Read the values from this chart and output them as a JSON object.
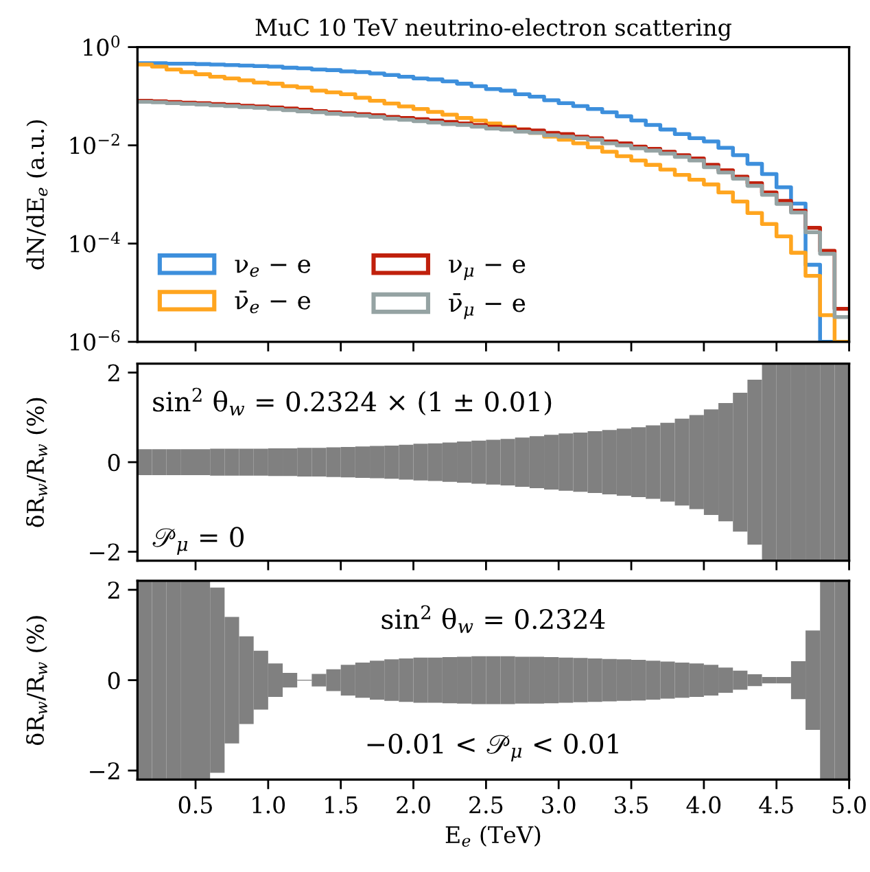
{
  "chart_data": [
    {
      "type": "histogram",
      "title": "MuC 10 TeV neutrino-electron scattering",
      "ylabel": "dN/dE$_{e}$ (a.u.)",
      "bins": [
        0.1,
        0.2,
        0.3,
        0.4,
        0.5,
        0.6,
        0.7,
        0.8,
        0.9,
        1.0,
        1.1,
        1.2,
        1.3,
        1.4,
        1.5,
        1.6,
        1.7,
        1.8,
        1.9,
        2.0,
        2.1,
        2.2,
        2.3,
        2.4,
        2.5,
        2.6,
        2.7,
        2.8,
        2.9,
        3.0,
        3.1,
        3.2,
        3.3,
        3.4,
        3.5,
        3.6,
        3.7,
        3.8,
        3.9,
        4.0,
        4.1,
        4.2,
        4.3,
        4.4,
        4.5,
        4.6,
        4.7,
        4.8,
        4.9,
        5.0
      ],
      "series": [
        {
          "name": "ν$_{e}$ − e",
          "color": "#3d8fdc",
          "values": [
            0.47,
            0.47,
            0.46,
            0.46,
            0.45,
            0.44,
            0.43,
            0.42,
            0.41,
            0.4,
            0.38,
            0.37,
            0.35,
            0.34,
            0.32,
            0.31,
            0.29,
            0.27,
            0.25,
            0.23,
            0.22,
            0.2,
            0.18,
            0.16,
            0.14,
            0.13,
            0.11,
            0.098,
            0.083,
            0.072,
            0.063,
            0.055,
            0.047,
            0.039,
            0.032,
            0.026,
            0.021,
            0.017,
            0.014,
            0.012,
            0.0089,
            0.0063,
            0.0042,
            0.0026,
            0.0014,
            0.00065,
            3.7e-05,
            null,
            null
          ]
        },
        {
          "name": "ν̄$_{e}$ − e",
          "color": "#ffa51f",
          "values": [
            0.44,
            0.4,
            0.35,
            0.31,
            0.28,
            0.25,
            0.23,
            0.21,
            0.19,
            0.18,
            0.16,
            0.15,
            0.13,
            0.12,
            0.11,
            0.093,
            0.081,
            0.071,
            0.062,
            0.055,
            0.048,
            0.042,
            0.036,
            0.032,
            0.028,
            0.024,
            0.021,
            0.018,
            0.015,
            0.013,
            0.011,
            0.0091,
            0.0074,
            0.006,
            0.0049,
            0.004,
            0.0032,
            0.0025,
            0.002,
            0.0016,
            0.0011,
            0.00072,
            0.00042,
            0.00025,
            0.00014,
            6.5e-05,
            2.2e-05,
            3.5e-06,
            null
          ]
        },
        {
          "name": "ν$_{μ}$ − e",
          "color": "#c0200c",
          "values": [
            0.081,
            0.079,
            0.076,
            0.074,
            0.072,
            0.069,
            0.067,
            0.064,
            0.062,
            0.059,
            0.056,
            0.053,
            0.05,
            0.047,
            0.045,
            0.043,
            0.041,
            0.038,
            0.036,
            0.034,
            0.032,
            0.03,
            0.028,
            0.026,
            0.024,
            0.023,
            0.021,
            0.02,
            0.018,
            0.017,
            0.015,
            0.014,
            0.012,
            0.011,
            0.0094,
            0.0085,
            0.0074,
            0.0063,
            0.0054,
            0.004,
            0.0031,
            0.0023,
            0.0017,
            0.0011,
            0.00074,
            0.00047,
            0.00021,
            7.1e-05,
            4.7e-06
          ]
        },
        {
          "name": "ν̄$_{μ}$ − e",
          "color": "#95a3a3",
          "values": [
            0.077,
            0.075,
            0.072,
            0.07,
            0.068,
            0.065,
            0.063,
            0.06,
            0.058,
            0.055,
            0.052,
            0.049,
            0.047,
            0.044,
            0.042,
            0.04,
            0.038,
            0.035,
            0.033,
            0.031,
            0.029,
            0.027,
            0.026,
            0.024,
            0.022,
            0.021,
            0.019,
            0.018,
            0.016,
            0.015,
            0.014,
            0.013,
            0.011,
            0.01,
            0.0087,
            0.0078,
            0.0068,
            0.0058,
            0.0049,
            0.0036,
            0.0028,
            0.0021,
            0.0015,
            0.00098,
            0.00064,
            0.00043,
            0.00017,
            6.2e-05,
            3.2e-06
          ]
        }
      ],
      "log": "y",
      "xlim": [
        0.1,
        5.0
      ],
      "xticks": [
        0.5,
        1.0,
        1.5,
        2.0,
        2.5,
        3.0,
        3.5,
        4.0,
        4.5,
        5.0
      ],
      "ylim": [
        1e-06,
        1
      ],
      "yticks": [
        {
          "value": 1,
          "label": "10$^{0}$"
        },
        {
          "value": 0.01,
          "label": "10$^{−2}$"
        },
        {
          "value": 0.0001,
          "label": "10$^{−4}$"
        },
        {
          "value": 1e-06,
          "label": "10$^{−6}$"
        }
      ],
      "legend": "bottom left",
      "tick_labels": "y"
    },
    {
      "type": "bar",
      "ylabel": "δR$_{w}$/R$_{w}$ (%)",
      "annotations": [
        "sin$^{2}$ θ$_{w}$ = 0.2324 × (1 ± 0.01)",
        "𝒫$_{μ}$ = 0"
      ],
      "x": [
        0.15,
        0.25,
        0.35,
        0.45,
        0.55,
        0.65,
        0.75,
        0.85,
        0.95,
        1.05,
        1.15,
        1.25,
        1.35,
        1.45,
        1.55,
        1.65,
        1.75,
        1.85,
        1.95,
        2.05,
        2.15,
        2.25,
        2.35,
        2.45,
        2.55,
        2.65,
        2.75,
        2.85,
        2.95,
        3.05,
        3.15,
        3.25,
        3.35,
        3.45,
        3.55,
        3.65,
        3.75,
        3.85,
        3.95,
        4.05,
        4.15,
        4.25,
        4.35,
        4.45,
        4.55,
        4.65,
        4.75,
        4.85,
        4.95
      ],
      "base": [
        -0.29,
        -0.29,
        -0.29,
        -0.29,
        -0.29,
        -0.3,
        -0.3,
        -0.3,
        -0.3,
        -0.31,
        -0.31,
        -0.32,
        -0.32,
        -0.33,
        -0.34,
        -0.35,
        -0.36,
        -0.37,
        -0.39,
        -0.41,
        -0.42,
        -0.44,
        -0.46,
        -0.48,
        -0.5,
        -0.52,
        -0.55,
        -0.58,
        -0.61,
        -0.64,
        -0.66,
        -0.69,
        -0.72,
        -0.75,
        -0.78,
        -0.82,
        -0.88,
        -0.97,
        -1.05,
        -1.18,
        -1.32,
        -1.55,
        -1.84,
        -2.2,
        -2.2,
        -2.2,
        -2.2,
        -2.2,
        -2.2
      ],
      "values": [
        0.58,
        0.58,
        0.58,
        0.58,
        0.58,
        0.6,
        0.6,
        0.6,
        0.6,
        0.62,
        0.62,
        0.64,
        0.64,
        0.66,
        0.68,
        0.7,
        0.72,
        0.74,
        0.78,
        0.82,
        0.84,
        0.88,
        0.92,
        0.96,
        1.0,
        1.04,
        1.1,
        1.16,
        1.22,
        1.28,
        1.32,
        1.38,
        1.44,
        1.5,
        1.56,
        1.64,
        1.76,
        1.94,
        2.1,
        2.36,
        2.64,
        3.1,
        3.68,
        4.4,
        4.4,
        4.4,
        4.4,
        4.4,
        4.4
      ],
      "color": "#808080",
      "xlim": [
        0.1,
        5.0
      ],
      "xticks": [
        0.5,
        1.0,
        1.5,
        2.0,
        2.5,
        3.0,
        3.5,
        4.0,
        4.5,
        5.0
      ],
      "ylim": [
        -2.2,
        2.2
      ],
      "yticks": [
        {
          "value": -2,
          "label": "−2"
        },
        0,
        2
      ],
      "tick_labels": "y"
    },
    {
      "type": "bar",
      "ylabel": "δR$_{w}$/R$_{w}$ (%)",
      "xlabel": "E$_{e}$ (TeV)",
      "annotations": [
        "sin$^{2}$ θ$_{w}$ = 0.2324",
        "−0.01 < 𝒫$_{μ}$ < 0.01"
      ],
      "x": [
        0.15,
        0.25,
        0.35,
        0.45,
        0.55,
        0.65,
        0.75,
        0.85,
        0.95,
        1.05,
        1.15,
        1.25,
        1.35,
        1.45,
        1.55,
        1.65,
        1.75,
        1.85,
        1.95,
        2.05,
        2.15,
        2.25,
        2.35,
        2.45,
        2.55,
        2.65,
        2.75,
        2.85,
        2.95,
        3.05,
        3.15,
        3.25,
        3.35,
        3.45,
        3.55,
        3.65,
        3.75,
        3.85,
        3.95,
        4.05,
        4.15,
        4.25,
        4.35,
        4.45,
        4.55,
        4.65,
        4.75,
        4.85,
        4.95
      ],
      "base": [
        -2.2,
        -2.2,
        -2.2,
        -2.2,
        -2.2,
        -2.05,
        -1.4,
        -0.97,
        -0.65,
        -0.37,
        -0.16,
        -0.01,
        -0.14,
        -0.24,
        -0.34,
        -0.39,
        -0.43,
        -0.46,
        -0.48,
        -0.5,
        -0.5,
        -0.51,
        -0.52,
        -0.53,
        -0.53,
        -0.53,
        -0.52,
        -0.52,
        -0.51,
        -0.5,
        -0.49,
        -0.48,
        -0.47,
        -0.46,
        -0.45,
        -0.43,
        -0.41,
        -0.39,
        -0.37,
        -0.34,
        -0.28,
        -0.21,
        -0.13,
        -0.07,
        -0.07,
        -0.42,
        -1.1,
        -2.2,
        -2.2
      ],
      "values": [
        4.4,
        4.4,
        4.4,
        4.4,
        4.4,
        4.1,
        2.8,
        1.94,
        1.3,
        0.74,
        0.32,
        0.02,
        0.28,
        0.48,
        0.68,
        0.78,
        0.86,
        0.92,
        0.96,
        1.0,
        1.0,
        1.02,
        1.04,
        1.06,
        1.06,
        1.06,
        1.04,
        1.04,
        1.02,
        1.0,
        0.98,
        0.96,
        0.94,
        0.92,
        0.9,
        0.86,
        0.82,
        0.78,
        0.74,
        0.68,
        0.56,
        0.42,
        0.26,
        0.14,
        0.14,
        0.84,
        2.2,
        4.4,
        4.4
      ],
      "color": "#808080",
      "xlim": [
        0.1,
        5.0
      ],
      "xticks": [
        0.5,
        {
          "value": 1,
          "label": "1.0"
        },
        1.5,
        {
          "value": 2,
          "label": "2.0"
        },
        2.5,
        {
          "value": 3,
          "label": "3.0"
        },
        3.5,
        {
          "value": 4,
          "label": "4.0"
        },
        4.5,
        {
          "value": 5,
          "label": "5.0"
        }
      ],
      "ylim": [
        -2.2,
        2.2
      ],
      "yticks": [
        {
          "value": -2,
          "label": "−2"
        },
        0,
        2
      ]
    }
  ]
}
